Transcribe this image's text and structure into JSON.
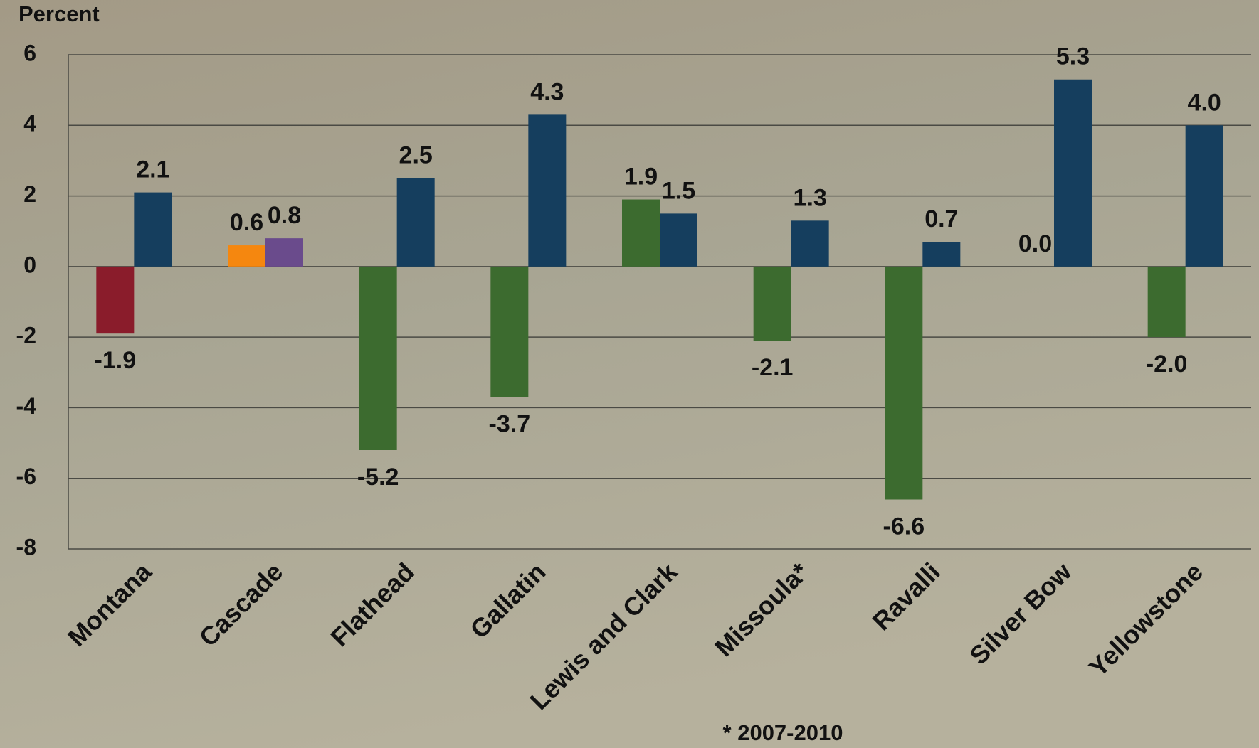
{
  "chart_data": {
    "type": "bar",
    "y_label": "Percent",
    "note": "* 2007-2010",
    "categories": [
      "Montana",
      "Cascade",
      "Flathead",
      "Gallatin",
      "Lewis and Clark",
      "Missoula*",
      "Ravalli",
      "Silver Bow",
      "Yellowstone"
    ],
    "series": [
      {
        "values": [
          -1.9,
          0.6,
          -5.2,
          -3.7,
          1.9,
          -2.1,
          -6.6,
          0.0,
          -2.0
        ],
        "value_labels": [
          "-1.9",
          "0.6",
          "-5.2",
          "-3.7",
          "1.9",
          "-2.1",
          "-6.6",
          "0.0",
          "-2.0"
        ],
        "colors": [
          "#8a1c2b",
          "#f5870f",
          "#3c6b2f",
          "#3c6b2f",
          "#3c6b2f",
          "#3c6b2f",
          "#3c6b2f",
          "#3c6b2f",
          "#3c6b2f"
        ]
      },
      {
        "values": [
          2.1,
          0.8,
          2.5,
          4.3,
          1.5,
          1.3,
          0.7,
          5.3,
          4.0
        ],
        "value_labels": [
          "2.1",
          "0.8",
          "2.5",
          "4.3",
          "1.5",
          "1.3",
          "0.7",
          "5.3",
          "4.0"
        ],
        "colors": [
          "#153e5e",
          "#6a4b8c",
          "#153e5e",
          "#153e5e",
          "#153e5e",
          "#153e5e",
          "#153e5e",
          "#153e5e",
          "#153e5e"
        ]
      }
    ],
    "ylim": [
      -8,
      6
    ],
    "yticks": [
      -8,
      -6,
      -4,
      -2,
      0,
      2,
      4,
      6
    ],
    "grid": true
  }
}
